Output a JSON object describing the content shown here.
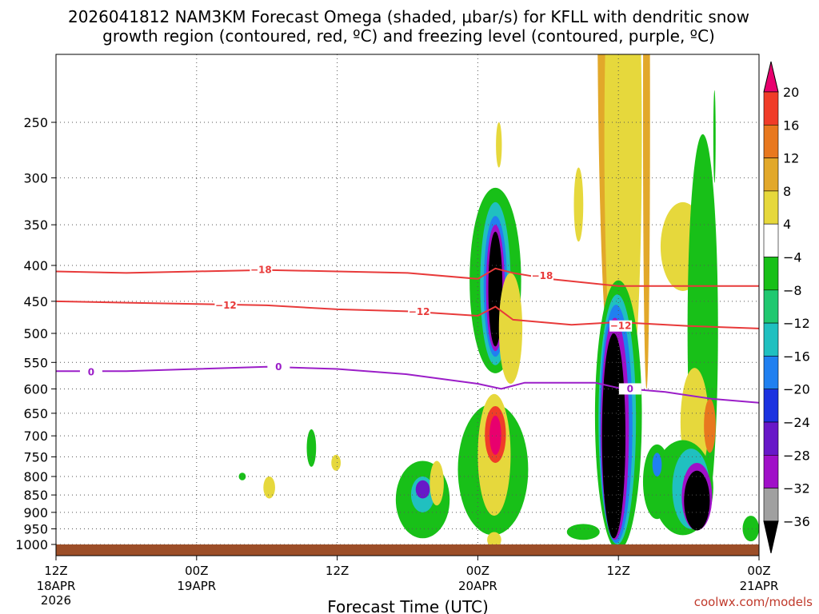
{
  "chart_data": {
    "type": "time-height cross section",
    "title_line1": "2026041812 NAM3KM Forecast Omega (shaded, μbar/s) for KFLL with dendritic snow",
    "title_line2": "growth region (contoured, red, ºC) and freezing level (contoured, purple, ºC)",
    "xlabel": "Forecast Time (UTC)",
    "credit": "coolwx.com/models",
    "x_range_hours": [
      0,
      60
    ],
    "x_ticks": [
      {
        "hour": 0,
        "label": "12Z",
        "date": "18APR",
        "year": "2026"
      },
      {
        "hour": 12,
        "label": "00Z",
        "date": "19APR",
        "year": ""
      },
      {
        "hour": 24,
        "label": "12Z",
        "date": "",
        "year": ""
      },
      {
        "hour": 36,
        "label": "00Z",
        "date": "20APR",
        "year": ""
      },
      {
        "hour": 48,
        "label": "12Z",
        "date": "",
        "year": ""
      },
      {
        "hour": 60,
        "label": "00Z",
        "date": "21APR",
        "year": ""
      }
    ],
    "y_range_hpa": [
      1000,
      200
    ],
    "y_ticks": [
      250,
      300,
      350,
      400,
      450,
      500,
      550,
      600,
      650,
      700,
      750,
      800,
      850,
      900,
      950,
      1000
    ],
    "colorbar": {
      "labels": [
        "20",
        "16",
        "12",
        "8",
        "4",
        "-4",
        "-8",
        "-12",
        "-16",
        "-20",
        "-24",
        "-28",
        "-32",
        "-36"
      ],
      "colors": [
        "#e8006e",
        "#f03c28",
        "#e8781e",
        "#e2a82a",
        "#e6d83c",
        "#ffffff",
        "#18c018",
        "#20c870",
        "#20c0c0",
        "#2080f0",
        "#1c32e0",
        "#6818c8",
        "#a010c8",
        "#a0a0a0",
        "#000000"
      ]
    },
    "contours": [
      {
        "name": "dgz-minus18",
        "label": "-18",
        "color": "#e83a3a",
        "points": [
          [
            0,
            408
          ],
          [
            6,
            410
          ],
          [
            12,
            408
          ],
          [
            18,
            406
          ],
          [
            24,
            408
          ],
          [
            30,
            410
          ],
          [
            36,
            418
          ],
          [
            37.5,
            404
          ],
          [
            39,
            410
          ],
          [
            42,
            418
          ],
          [
            48,
            428
          ],
          [
            54,
            428
          ],
          [
            60,
            428
          ]
        ],
        "label_at": [
          [
            17.5,
            406
          ],
          [
            41.5,
            414
          ]
        ]
      },
      {
        "name": "dgz-minus12",
        "label": "-12",
        "color": "#e83a3a",
        "points": [
          [
            0,
            450
          ],
          [
            6,
            452
          ],
          [
            12,
            454
          ],
          [
            18,
            456
          ],
          [
            24,
            462
          ],
          [
            30,
            465
          ],
          [
            36,
            472
          ],
          [
            37.5,
            458
          ],
          [
            39,
            478
          ],
          [
            44,
            486
          ],
          [
            48,
            482
          ],
          [
            54,
            488
          ],
          [
            60,
            492
          ]
        ],
        "label_at": [
          [
            14.5,
            456
          ],
          [
            31,
            466
          ],
          [
            48.2,
            488
          ]
        ]
      },
      {
        "name": "freezing-level",
        "label": "0",
        "color": "#9b1ec8",
        "points": [
          [
            0,
            566
          ],
          [
            6,
            566
          ],
          [
            12,
            562
          ],
          [
            18,
            558
          ],
          [
            24,
            562
          ],
          [
            30,
            572
          ],
          [
            36,
            590
          ],
          [
            38,
            600
          ],
          [
            40,
            588
          ],
          [
            46,
            588
          ],
          [
            48,
            598
          ],
          [
            52,
            606
          ],
          [
            56,
            620
          ],
          [
            60,
            628
          ]
        ],
        "label_at": [
          [
            3,
            568
          ],
          [
            19,
            558
          ],
          [
            49,
            600
          ]
        ]
      }
    ],
    "omega_cells": [
      {
        "name": "omega-cell-a",
        "color": "#18c018",
        "cx": 21.8,
        "cy": 730,
        "rx": 0.4,
        "ry": 45
      },
      {
        "name": "omega-cell-b",
        "color": "#18c018",
        "cx": 15.9,
        "cy": 800,
        "rx": 0.3,
        "ry": 10
      },
      {
        "name": "omega-cell-c",
        "color": "#e6d83c",
        "cx": 23.9,
        "cy": 765,
        "rx": 0.4,
        "ry": 20
      },
      {
        "name": "omega-cell-d",
        "color": "#e6d83c",
        "cx": 18.2,
        "cy": 830,
        "rx": 0.5,
        "ry": 30
      },
      {
        "name": "omega-cell-e1",
        "color": "#18c018",
        "cx": 31.3,
        "cy": 870,
        "rx": 2.3,
        "ry": 110
      },
      {
        "name": "omega-cell-e2",
        "color": "#20c0c0",
        "cx": 31.3,
        "cy": 850,
        "rx": 1.0,
        "ry": 50
      },
      {
        "name": "omega-cell-e3",
        "color": "#6818c8",
        "cx": 31.3,
        "cy": 835,
        "rx": 0.6,
        "ry": 25
      },
      {
        "name": "omega-cell-f1",
        "color": "#18c018",
        "cx": 37.5,
        "cy": 440,
        "rx": 2.2,
        "ry": 130
      },
      {
        "name": "omega-cell-f2",
        "color": "#20c0c0",
        "cx": 37.5,
        "cy": 440,
        "rx": 1.3,
        "ry": 115
      },
      {
        "name": "omega-cell-f3",
        "color": "#2080f0",
        "cx": 37.5,
        "cy": 440,
        "rx": 1.0,
        "ry": 100
      },
      {
        "name": "omega-cell-f4",
        "color": "#a010c8",
        "cx": 37.5,
        "cy": 440,
        "rx": 0.8,
        "ry": 90
      },
      {
        "name": "omega-cell-f5",
        "color": "#000000",
        "cx": 37.5,
        "cy": 440,
        "rx": 0.6,
        "ry": 82
      },
      {
        "name": "omega-cell-g1",
        "color": "#18c018",
        "cx": 37.3,
        "cy": 800,
        "rx": 3.0,
        "ry": 170
      },
      {
        "name": "omega-cell-g2",
        "color": "#e6d83c",
        "cx": 37.4,
        "cy": 760,
        "rx": 1.4,
        "ry": 150
      },
      {
        "name": "omega-cell-g3",
        "color": "#f03c28",
        "cx": 37.5,
        "cy": 700,
        "rx": 0.9,
        "ry": 65
      },
      {
        "name": "omega-cell-g4",
        "color": "#e8006e",
        "cx": 37.5,
        "cy": 700,
        "rx": 0.5,
        "ry": 45
      },
      {
        "name": "omega-cell-h1",
        "color": "#e6d83c",
        "cx": 38.8,
        "cy": 500,
        "rx": 1.0,
        "ry": 90
      },
      {
        "name": "omega-cell-i1",
        "color": "#e2a82a",
        "cx": 47.4,
        "cy": 300,
        "rx": 1.2,
        "ry": 260
      },
      {
        "name": "omega-cell-i2",
        "color": "#e6d83c",
        "cx": 48.4,
        "cy": 400,
        "rx": 1.6,
        "ry": 300
      },
      {
        "name": "omega-cell-j1",
        "color": "#18c018",
        "cx": 48.0,
        "cy": 720,
        "rx": 2.0,
        "ry": 300
      },
      {
        "name": "omega-cell-j2",
        "color": "#20c0c0",
        "cx": 47.9,
        "cy": 720,
        "rx": 1.6,
        "ry": 280
      },
      {
        "name": "omega-cell-j3",
        "color": "#2080f0",
        "cx": 47.8,
        "cy": 725,
        "rx": 1.4,
        "ry": 270
      },
      {
        "name": "omega-cell-j4",
        "color": "#a010c8",
        "cx": 47.7,
        "cy": 730,
        "rx": 1.2,
        "ry": 255
      },
      {
        "name": "omega-cell-j5",
        "color": "#000000",
        "cx": 47.6,
        "cy": 740,
        "rx": 1.0,
        "ry": 240
      },
      {
        "name": "omega-cell-k1",
        "color": "#e6d83c",
        "cx": 53.5,
        "cy": 380,
        "rx": 1.9,
        "ry": 55
      },
      {
        "name": "omega-cell-k2",
        "color": "#18c018",
        "cx": 55.2,
        "cy": 600,
        "rx": 1.3,
        "ry": 340
      },
      {
        "name": "omega-cell-k3",
        "color": "#e6d83c",
        "cx": 54.5,
        "cy": 680,
        "rx": 1.2,
        "ry": 120
      },
      {
        "name": "omega-cell-l1",
        "color": "#18c018",
        "cx": 53.5,
        "cy": 840,
        "rx": 2.6,
        "ry": 130
      },
      {
        "name": "omega-cell-l2",
        "color": "#20c0c0",
        "cx": 54.2,
        "cy": 840,
        "rx": 1.6,
        "ry": 110
      },
      {
        "name": "omega-cell-l3",
        "color": "#a010c8",
        "cx": 54.7,
        "cy": 860,
        "rx": 1.3,
        "ry": 95
      },
      {
        "name": "omega-cell-l4",
        "color": "#000000",
        "cx": 54.7,
        "cy": 870,
        "rx": 1.1,
        "ry": 85
      },
      {
        "name": "omega-cell-m1",
        "color": "#18c018",
        "cx": 51.3,
        "cy": 820,
        "rx": 1.2,
        "ry": 100
      },
      {
        "name": "omega-cell-m2",
        "color": "#2080f0",
        "cx": 51.3,
        "cy": 770,
        "rx": 0.4,
        "ry": 30
      },
      {
        "name": "omega-cell-n1",
        "color": "#e8781e",
        "cx": 55.8,
        "cy": 680,
        "rx": 0.5,
        "ry": 60
      },
      {
        "name": "omega-cell-o1",
        "color": "#18c018",
        "cx": 59.3,
        "cy": 950,
        "rx": 0.7,
        "ry": 40
      },
      {
        "name": "omega-cell-p1",
        "color": "#18c018",
        "cx": 45.0,
        "cy": 960,
        "rx": 1.4,
        "ry": 25
      },
      {
        "name": "omega-cell-q1",
        "color": "#e2a82a",
        "cx": 50.4,
        "cy": 350,
        "rx": 0.3,
        "ry": 250
      },
      {
        "name": "omega-cell-r1",
        "color": "#e6d83c",
        "cx": 32.5,
        "cy": 820,
        "rx": 0.6,
        "ry": 60
      },
      {
        "name": "omega-cell-s1",
        "color": "#e6d83c",
        "cx": 37.4,
        "cy": 985,
        "rx": 0.6,
        "ry": 25
      },
      {
        "name": "omega-cell-t1",
        "color": "#e6d83c",
        "cx": 37.8,
        "cy": 270,
        "rx": 0.25,
        "ry": 20
      },
      {
        "name": "omega-cell-u1",
        "color": "#e6d83c",
        "cx": 44.6,
        "cy": 330,
        "rx": 0.4,
        "ry": 40
      },
      {
        "name": "omega-cell-v1",
        "color": "#18c018",
        "cx": 56.2,
        "cy": 265,
        "rx": 0.1,
        "ry": 40
      }
    ]
  }
}
